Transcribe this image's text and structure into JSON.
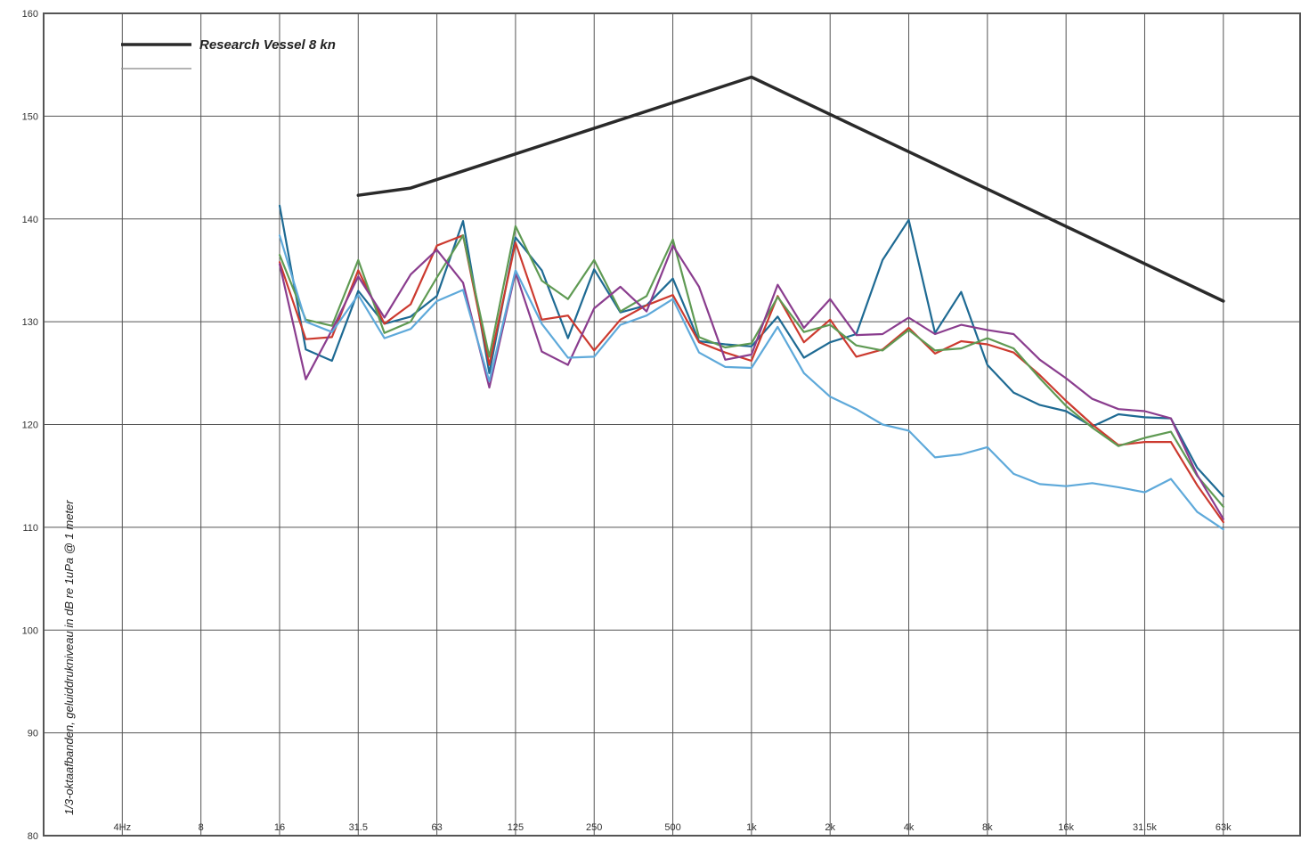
{
  "chart_data": {
    "type": "line",
    "ylabel": "1/3-oktaafbanden, geluiddrukniveau in dB re 1uPa @ 1 meter",
    "xlabel": "",
    "ylim": [
      80,
      160
    ],
    "yticks": [
      80,
      90,
      100,
      110,
      120,
      130,
      140,
      150,
      160
    ],
    "x_scale": "log",
    "x_band_indices": [
      0,
      1,
      2,
      3,
      4,
      5,
      6,
      7,
      8,
      9,
      10,
      11,
      12,
      13,
      14,
      15,
      16,
      17,
      18,
      19,
      20,
      21,
      22,
      23,
      24,
      25,
      26,
      27,
      28,
      29,
      30,
      31,
      32,
      33,
      34,
      35,
      36,
      37,
      38,
      39,
      40,
      41,
      42,
      43,
      44,
      45,
      46,
      47
    ],
    "xtick_labels": [
      {
        "band": 3,
        "label": "4Hz"
      },
      {
        "band": 6,
        "label": "8"
      },
      {
        "band": 9,
        "label": "16"
      },
      {
        "band": 12,
        "label": "31.5"
      },
      {
        "band": 15,
        "label": "63"
      },
      {
        "band": 18,
        "label": "125"
      },
      {
        "band": 21,
        "label": "250"
      },
      {
        "band": 24,
        "label": "500"
      },
      {
        "band": 27,
        "label": "1k"
      },
      {
        "band": 30,
        "label": "2k"
      },
      {
        "band": 33,
        "label": "4k"
      },
      {
        "band": 36,
        "label": "8k"
      },
      {
        "band": 39,
        "label": "16k"
      },
      {
        "band": 42,
        "label": "31.5k"
      },
      {
        "band": 45,
        "label": "63k"
      }
    ],
    "grid": true,
    "legend_position": "top-left",
    "series": [
      {
        "name": "Research Vessel 8 kn",
        "color": "#2a2a2a",
        "width": 3.5,
        "points": [
          [
            12,
            142.3
          ],
          [
            14,
            143.0
          ],
          [
            27,
            153.8
          ],
          [
            45,
            132.0
          ]
        ]
      },
      {
        "name": "",
        "color": "#1e6a93",
        "width": 2.2,
        "points": [
          [
            9,
            141.3
          ],
          [
            10,
            127.3
          ],
          [
            11,
            126.2
          ],
          [
            12,
            133.0
          ],
          [
            13,
            129.8
          ],
          [
            14,
            130.5
          ],
          [
            15,
            132.5
          ],
          [
            16,
            139.8
          ],
          [
            17,
            125.0
          ],
          [
            18,
            138.2
          ],
          [
            19,
            135.0
          ],
          [
            20,
            128.4
          ],
          [
            21,
            135.1
          ],
          [
            22,
            130.9
          ],
          [
            23,
            131.6
          ],
          [
            24,
            134.2
          ],
          [
            25,
            128.1
          ],
          [
            26,
            127.8
          ],
          [
            27,
            127.6
          ],
          [
            28,
            130.5
          ],
          [
            29,
            126.5
          ],
          [
            30,
            128.0
          ],
          [
            31,
            128.8
          ],
          [
            32,
            136.0
          ],
          [
            33,
            139.9
          ],
          [
            34,
            128.9
          ],
          [
            35,
            132.9
          ],
          [
            36,
            125.8
          ],
          [
            37,
            123.1
          ],
          [
            38,
            121.9
          ],
          [
            39,
            121.3
          ],
          [
            40,
            119.8
          ],
          [
            41,
            121.0
          ],
          [
            42,
            120.7
          ],
          [
            43,
            120.6
          ],
          [
            44,
            115.8
          ],
          [
            45,
            113.0
          ]
        ]
      },
      {
        "name": "",
        "color": "#cc3a2f",
        "width": 2.2,
        "points": [
          [
            9,
            135.8
          ],
          [
            10,
            128.3
          ],
          [
            11,
            128.5
          ],
          [
            12,
            135.0
          ],
          [
            13,
            129.8
          ],
          [
            14,
            131.7
          ],
          [
            15,
            137.4
          ],
          [
            16,
            138.4
          ],
          [
            17,
            125.8
          ],
          [
            18,
            137.7
          ],
          [
            19,
            130.2
          ],
          [
            20,
            130.6
          ],
          [
            21,
            127.2
          ],
          [
            22,
            130.2
          ],
          [
            23,
            131.6
          ],
          [
            24,
            132.6
          ],
          [
            25,
            128.0
          ],
          [
            26,
            127.0
          ],
          [
            27,
            126.2
          ],
          [
            28,
            132.5
          ],
          [
            29,
            128.0
          ],
          [
            30,
            130.2
          ],
          [
            31,
            126.6
          ],
          [
            32,
            127.3
          ],
          [
            33,
            129.4
          ],
          [
            34,
            126.9
          ],
          [
            35,
            128.1
          ],
          [
            36,
            127.8
          ],
          [
            37,
            127.0
          ],
          [
            38,
            124.8
          ],
          [
            39,
            122.3
          ],
          [
            40,
            120.0
          ],
          [
            41,
            118.0
          ],
          [
            42,
            118.3
          ],
          [
            43,
            118.3
          ],
          [
            44,
            114.1
          ],
          [
            45,
            110.5
          ]
        ]
      },
      {
        "name": "",
        "color": "#5f9a53",
        "width": 2.2,
        "points": [
          [
            9,
            136.5
          ],
          [
            10,
            130.2
          ],
          [
            11,
            129.6
          ],
          [
            12,
            136.0
          ],
          [
            13,
            128.9
          ],
          [
            14,
            130.0
          ],
          [
            15,
            134.3
          ],
          [
            16,
            138.4
          ],
          [
            17,
            126.6
          ],
          [
            18,
            139.3
          ],
          [
            19,
            134.0
          ],
          [
            20,
            132.2
          ],
          [
            21,
            136.0
          ],
          [
            22,
            131.0
          ],
          [
            23,
            132.5
          ],
          [
            24,
            138.0
          ],
          [
            25,
            128.5
          ],
          [
            26,
            127.5
          ],
          [
            27,
            127.9
          ],
          [
            28,
            132.4
          ],
          [
            29,
            129.0
          ],
          [
            30,
            129.7
          ],
          [
            31,
            127.7
          ],
          [
            32,
            127.2
          ],
          [
            33,
            129.2
          ],
          [
            34,
            127.2
          ],
          [
            35,
            127.4
          ],
          [
            36,
            128.4
          ],
          [
            37,
            127.4
          ],
          [
            38,
            124.5
          ],
          [
            39,
            121.8
          ],
          [
            40,
            119.7
          ],
          [
            41,
            117.9
          ],
          [
            42,
            118.7
          ],
          [
            43,
            119.3
          ],
          [
            44,
            115.0
          ],
          [
            45,
            112.0
          ]
        ]
      },
      {
        "name": "",
        "color": "#8a3d8e",
        "width": 2.2,
        "points": [
          [
            9,
            135.6
          ],
          [
            10,
            124.4
          ],
          [
            11,
            129.2
          ],
          [
            12,
            134.4
          ],
          [
            13,
            130.4
          ],
          [
            14,
            134.6
          ],
          [
            15,
            137.0
          ],
          [
            16,
            133.8
          ],
          [
            17,
            123.6
          ],
          [
            18,
            134.8
          ],
          [
            19,
            127.1
          ],
          [
            20,
            125.8
          ],
          [
            21,
            131.3
          ],
          [
            22,
            133.4
          ],
          [
            23,
            131.0
          ],
          [
            24,
            137.4
          ],
          [
            25,
            133.4
          ],
          [
            26,
            126.3
          ],
          [
            27,
            126.8
          ],
          [
            28,
            133.6
          ],
          [
            29,
            129.4
          ],
          [
            30,
            132.2
          ],
          [
            31,
            128.7
          ],
          [
            32,
            128.8
          ],
          [
            33,
            130.4
          ],
          [
            34,
            128.8
          ],
          [
            35,
            129.7
          ],
          [
            36,
            129.2
          ],
          [
            37,
            128.8
          ],
          [
            38,
            126.3
          ],
          [
            39,
            124.5
          ],
          [
            40,
            122.5
          ],
          [
            41,
            121.5
          ],
          [
            42,
            121.3
          ],
          [
            43,
            120.6
          ],
          [
            44,
            115.1
          ],
          [
            45,
            110.8
          ]
        ]
      },
      {
        "name": "",
        "color": "#5ea9da",
        "width": 2.2,
        "points": [
          [
            9,
            138.4
          ],
          [
            10,
            130.0
          ],
          [
            11,
            129.0
          ],
          [
            12,
            132.6
          ],
          [
            13,
            128.4
          ],
          [
            14,
            129.3
          ],
          [
            15,
            132.0
          ],
          [
            16,
            133.1
          ],
          [
            17,
            124.2
          ],
          [
            18,
            135.0
          ],
          [
            19,
            129.8
          ],
          [
            20,
            126.5
          ],
          [
            21,
            126.6
          ],
          [
            22,
            129.7
          ],
          [
            23,
            130.6
          ],
          [
            24,
            132.2
          ],
          [
            25,
            127.0
          ],
          [
            26,
            125.6
          ],
          [
            27,
            125.5
          ],
          [
            28,
            129.5
          ],
          [
            29,
            125.0
          ],
          [
            30,
            122.7
          ],
          [
            31,
            121.5
          ],
          [
            32,
            120.0
          ],
          [
            33,
            119.4
          ],
          [
            34,
            116.8
          ],
          [
            35,
            117.1
          ],
          [
            36,
            117.8
          ],
          [
            37,
            115.2
          ],
          [
            38,
            114.2
          ],
          [
            39,
            114.0
          ],
          [
            40,
            114.3
          ],
          [
            41,
            113.9
          ],
          [
            42,
            113.4
          ],
          [
            43,
            114.7
          ],
          [
            44,
            111.5
          ],
          [
            45,
            109.8
          ]
        ]
      }
    ],
    "legend": [
      {
        "label": "Research Vessel 8 kn",
        "color": "#2a2a2a",
        "width": 3.5
      },
      {
        "label": "",
        "color": "#9a9a9a",
        "width": 1.5
      }
    ]
  }
}
